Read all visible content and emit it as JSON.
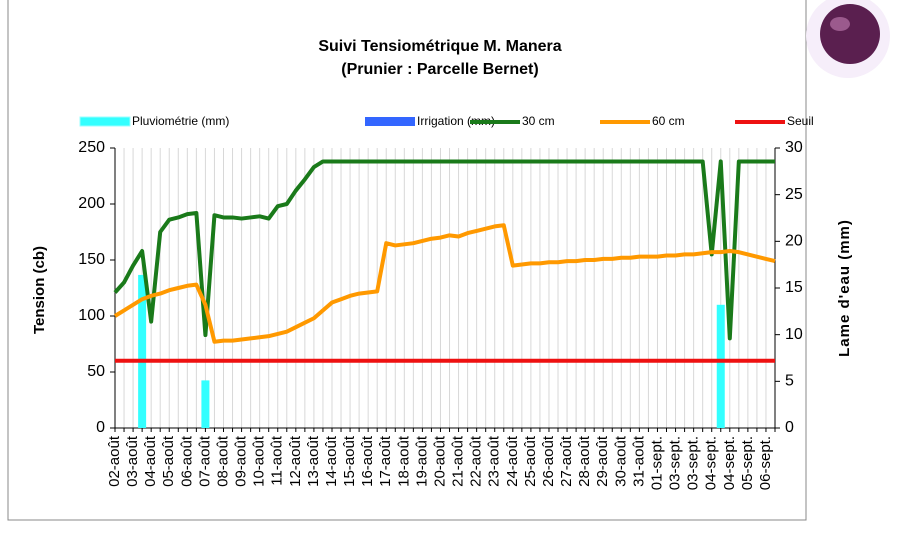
{
  "chart_data": {
    "type": "combo",
    "title": "Suivi Tensiométrique M. Manera",
    "subtitle": "(Prunier : Parcelle Bernet)",
    "y_label": "Tension (cb)",
    "y2_label": "Lame d'eau (mm)",
    "categories": [
      "02-août",
      null,
      "03-août",
      null,
      "04-août",
      null,
      "05-août",
      null,
      "06-août",
      null,
      "07-août",
      null,
      "08-août",
      null,
      "09-août",
      null,
      "10-août",
      null,
      "11-août",
      null,
      "12-août",
      null,
      "13-août",
      null,
      "14-août",
      null,
      "15-août",
      null,
      "16-août",
      null,
      "17-août",
      null,
      "18-août",
      null,
      "19-août",
      null,
      "20-août",
      null,
      "21-août",
      null,
      "22-août",
      null,
      "23-août",
      null,
      "24-août",
      null,
      "25-août",
      null,
      "26-août",
      null,
      "27-août",
      null,
      "28-août",
      null,
      "29-août",
      null,
      "30-août",
      null,
      "31-août",
      null,
      "01-sept.",
      null,
      "03-sept.",
      null,
      "03-sept.",
      null,
      "04-sept.",
      null,
      "04-sept.",
      null,
      "05-sept.",
      null,
      "06-sept.",
      null
    ],
    "ylim": [
      0,
      250
    ],
    "yticks": [
      0,
      50,
      100,
      150,
      200,
      250
    ],
    "y2lim": [
      0,
      30
    ],
    "y2ticks": [
      0,
      5,
      10,
      15,
      20,
      25,
      30
    ],
    "grid": true,
    "series": [
      {
        "name": "Pluviométrie (mm)",
        "type": "bar",
        "axis": "y2",
        "color": "#33ffff",
        "values": [
          null,
          null,
          null,
          16.4,
          null,
          null,
          null,
          null,
          null,
          null,
          5.1,
          null,
          null,
          null,
          null,
          null,
          null,
          null,
          null,
          null,
          null,
          null,
          null,
          null,
          null,
          null,
          null,
          null,
          null,
          null,
          null,
          null,
          null,
          null,
          null,
          null,
          null,
          null,
          null,
          null,
          null,
          null,
          null,
          null,
          null,
          null,
          null,
          null,
          null,
          null,
          null,
          null,
          null,
          null,
          null,
          null,
          null,
          null,
          null,
          null,
          null,
          null,
          null,
          null,
          null,
          null,
          null,
          13.2,
          null,
          null,
          null,
          null,
          null,
          null
        ]
      },
      {
        "name": "Irrigation (mm)",
        "type": "bar",
        "axis": "y2",
        "color": "#3366ff",
        "values": [
          null,
          null,
          null,
          null,
          null,
          null,
          null,
          null,
          null,
          null,
          null,
          null,
          null,
          null,
          null,
          null,
          null,
          null,
          null,
          null,
          null,
          null,
          null,
          null,
          null,
          null,
          null,
          null,
          null,
          null,
          null,
          null,
          null,
          null,
          null,
          null,
          null,
          null,
          null,
          null,
          null,
          null,
          null,
          null,
          null,
          null,
          null,
          null,
          null,
          null,
          null,
          null,
          null,
          null,
          null,
          null,
          null,
          null,
          null,
          null,
          null,
          null,
          null,
          null,
          null,
          null,
          null,
          null,
          null,
          null,
          null,
          null,
          null,
          null
        ]
      },
      {
        "name": "30 cm",
        "type": "line",
        "color": "#1a7a1a",
        "values": [
          121,
          130,
          145,
          158,
          95,
          175,
          186,
          188,
          191,
          192,
          83,
          190,
          188,
          188,
          187,
          188,
          189,
          187,
          198,
          200,
          212,
          222,
          233,
          238,
          238,
          238,
          238,
          238,
          238,
          238,
          238,
          238,
          238,
          238,
          238,
          238,
          238,
          238,
          238,
          238,
          238,
          238,
          238,
          238,
          238,
          238,
          238,
          238,
          238,
          238,
          238,
          238,
          238,
          238,
          238,
          238,
          238,
          238,
          238,
          238,
          238,
          238,
          238,
          238,
          238,
          238,
          155,
          238,
          80,
          238,
          238,
          238,
          238,
          238
        ]
      },
      {
        "name": "60 cm",
        "type": "line",
        "color": "#ff9900",
        "values": [
          100,
          105,
          110,
          115,
          118,
          120,
          123,
          125,
          127,
          128,
          110,
          77,
          78,
          78,
          79,
          80,
          81,
          82,
          84,
          86,
          90,
          94,
          98,
          105,
          112,
          115,
          118,
          120,
          121,
          122,
          165,
          163,
          164,
          165,
          167,
          169,
          170,
          172,
          171,
          174,
          176,
          178,
          180,
          181,
          145,
          146,
          147,
          147,
          148,
          148,
          149,
          149,
          150,
          150,
          151,
          151,
          152,
          152,
          153,
          153,
          153,
          154,
          154,
          155,
          155,
          156,
          157,
          157,
          158,
          157,
          155,
          153,
          151,
          149
        ]
      },
      {
        "name": "Seuil",
        "type": "line",
        "color": "#ee1111",
        "values": [
          60,
          60,
          60,
          60,
          60,
          60,
          60,
          60,
          60,
          60,
          60,
          60,
          60,
          60,
          60,
          60,
          60,
          60,
          60,
          60,
          60,
          60,
          60,
          60,
          60,
          60,
          60,
          60,
          60,
          60,
          60,
          60,
          60,
          60,
          60,
          60,
          60,
          60,
          60,
          60,
          60,
          60,
          60,
          60,
          60,
          60,
          60,
          60,
          60,
          60,
          60,
          60,
          60,
          60,
          60,
          60,
          60,
          60,
          60,
          60,
          60,
          60,
          60,
          60,
          60,
          60,
          60,
          60,
          60,
          60,
          60,
          60,
          60,
          60
        ]
      }
    ]
  }
}
